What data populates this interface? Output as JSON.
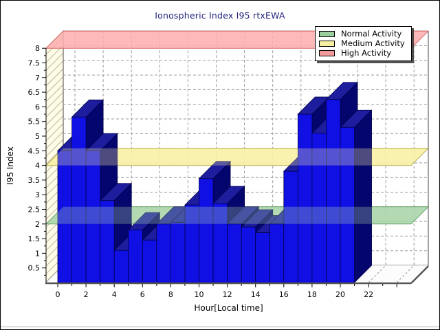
{
  "chart": {
    "title": "Ionospheric Index I95 rtxEWA",
    "title_color": "#23237e",
    "y_axis": {
      "title": "I95 Index",
      "range": [
        0,
        8
      ],
      "tick_labels": [
        "0.5",
        "1",
        "1.5",
        "2",
        "2.5",
        "3",
        "3.5",
        "4",
        "4.5",
        "5",
        "5.5",
        "6",
        "6.5",
        "7",
        "7.5",
        "8"
      ]
    },
    "x_axis": {
      "title": "Hour[Local time]",
      "range": [
        0,
        24
      ],
      "tick_labels": [
        "0",
        "2",
        "4",
        "6",
        "8",
        "10",
        "12",
        "14",
        "16",
        "18",
        "20",
        "22"
      ]
    },
    "legend": {
      "position": "top-right",
      "items": [
        {
          "label": "Normal Activity",
          "color": "#9ccd9c"
        },
        {
          "label": "Medium Activity",
          "color": "#f6efa0"
        },
        {
          "label": "High Activity",
          "color": "#f59a9a"
        }
      ]
    }
  },
  "chart_data": {
    "type": "bar",
    "projection": "3d",
    "title": "Ionospheric Index I95 rtxEWA",
    "xlabel": "Hour[Local time]",
    "ylabel": "I95 Index",
    "xlim": [
      0,
      24
    ],
    "ylim": [
      0,
      8
    ],
    "grid": true,
    "hours": [
      0,
      1,
      2,
      3,
      4,
      5,
      6,
      7,
      8,
      9,
      10,
      11,
      12,
      13,
      14,
      15,
      16,
      17,
      18,
      19,
      20
    ],
    "values": [
      4.5,
      5.65,
      4.5,
      2.8,
      1.1,
      1.8,
      1.45,
      2.0,
      2.05,
      2.65,
      3.55,
      2.7,
      2.0,
      1.9,
      1.7,
      2.0,
      3.8,
      5.75,
      5.1,
      6.25,
      5.3
    ],
    "bar_colors": {
      "front": "#1010e4",
      "top": "#1d1d9e",
      "side": "#05056e",
      "edge": "#00004a"
    },
    "thresholds": [
      {
        "label": "Normal Activity",
        "value": 2,
        "color": "#a9d5a9",
        "edge": "#5a9a5a"
      },
      {
        "label": "Medium Activity",
        "value": 4,
        "color": "#f8f0a4",
        "edge": "#b3a64a"
      },
      {
        "label": "High Activity",
        "value": 8,
        "color": "#fdadad",
        "edge": "#d96a6a"
      }
    ],
    "wall_color": "#fffce6",
    "background_color": "#ffffff"
  }
}
